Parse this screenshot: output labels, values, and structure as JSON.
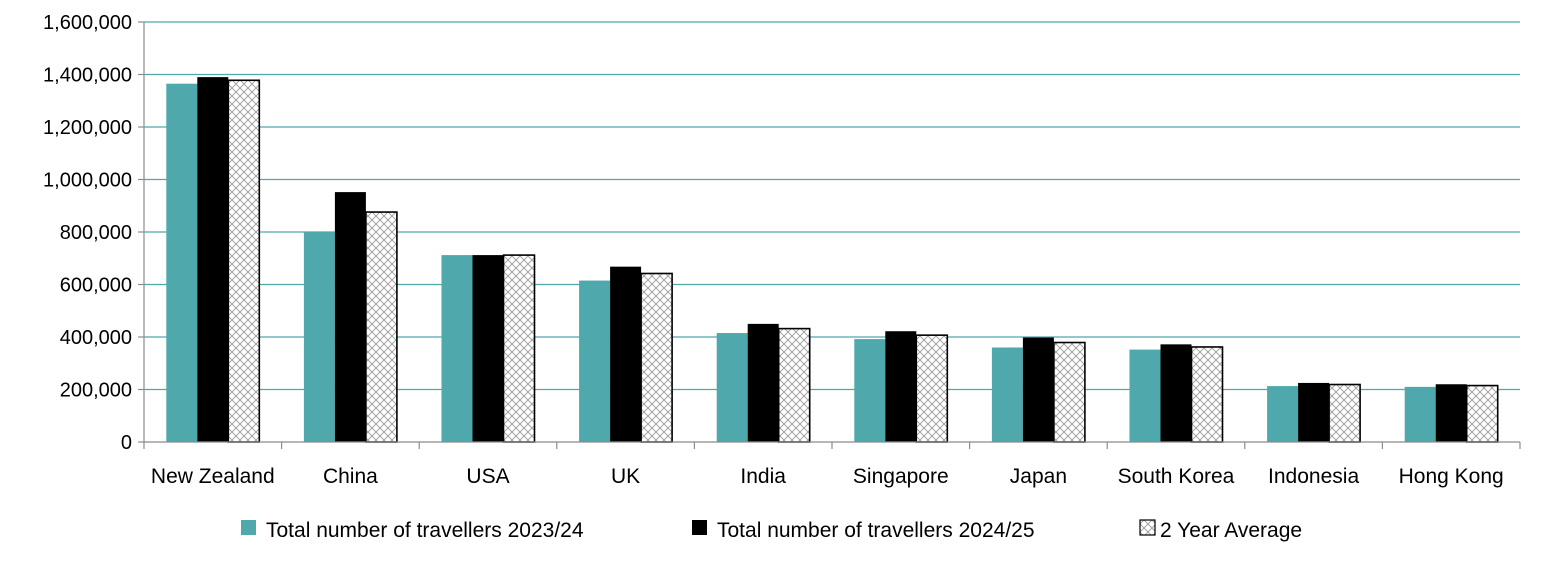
{
  "chart_data": {
    "type": "bar",
    "title": "",
    "xlabel": "",
    "ylabel": "",
    "ylim": [
      0,
      1600000
    ],
    "yticks": [
      0,
      200000,
      400000,
      600000,
      800000,
      1000000,
      1200000,
      1400000,
      1600000
    ],
    "ytick_labels": [
      "0",
      "200,000",
      "400,000",
      "600,000",
      "800,000",
      "1,000,000",
      "1,200,000",
      "1,400,000",
      "1,600,000"
    ],
    "grid": true,
    "legend_position": "bottom",
    "categories": [
      "New Zealand",
      "China",
      "USA",
      "UK",
      "India",
      "Singapore",
      "Japan",
      "South Korea",
      "Indonesia",
      "Hong Kong"
    ],
    "series": [
      {
        "name": "Total number of travellers 2023/24",
        "style": "solid",
        "color": "#4EA8AC",
        "values": [
          1365000,
          800000,
          712000,
          615000,
          415000,
          392000,
          360000,
          352000,
          213000,
          210000
        ]
      },
      {
        "name": "Total number of travellers 2024/25",
        "style": "solid",
        "color": "#000000",
        "values": [
          1390000,
          952000,
          712000,
          668000,
          450000,
          422000,
          398000,
          372000,
          225000,
          220000
        ]
      },
      {
        "name": "2 Year Average",
        "style": "hatched",
        "color": "#ffffff",
        "values": [
          1378000,
          876000,
          712000,
          642000,
          432000,
          407000,
          379000,
          362000,
          219000,
          215000
        ]
      }
    ]
  },
  "colors": {
    "gridline": "#4EA8AC",
    "axis": "#8c8c8c",
    "hatch_stroke": "#9a9a9a"
  }
}
